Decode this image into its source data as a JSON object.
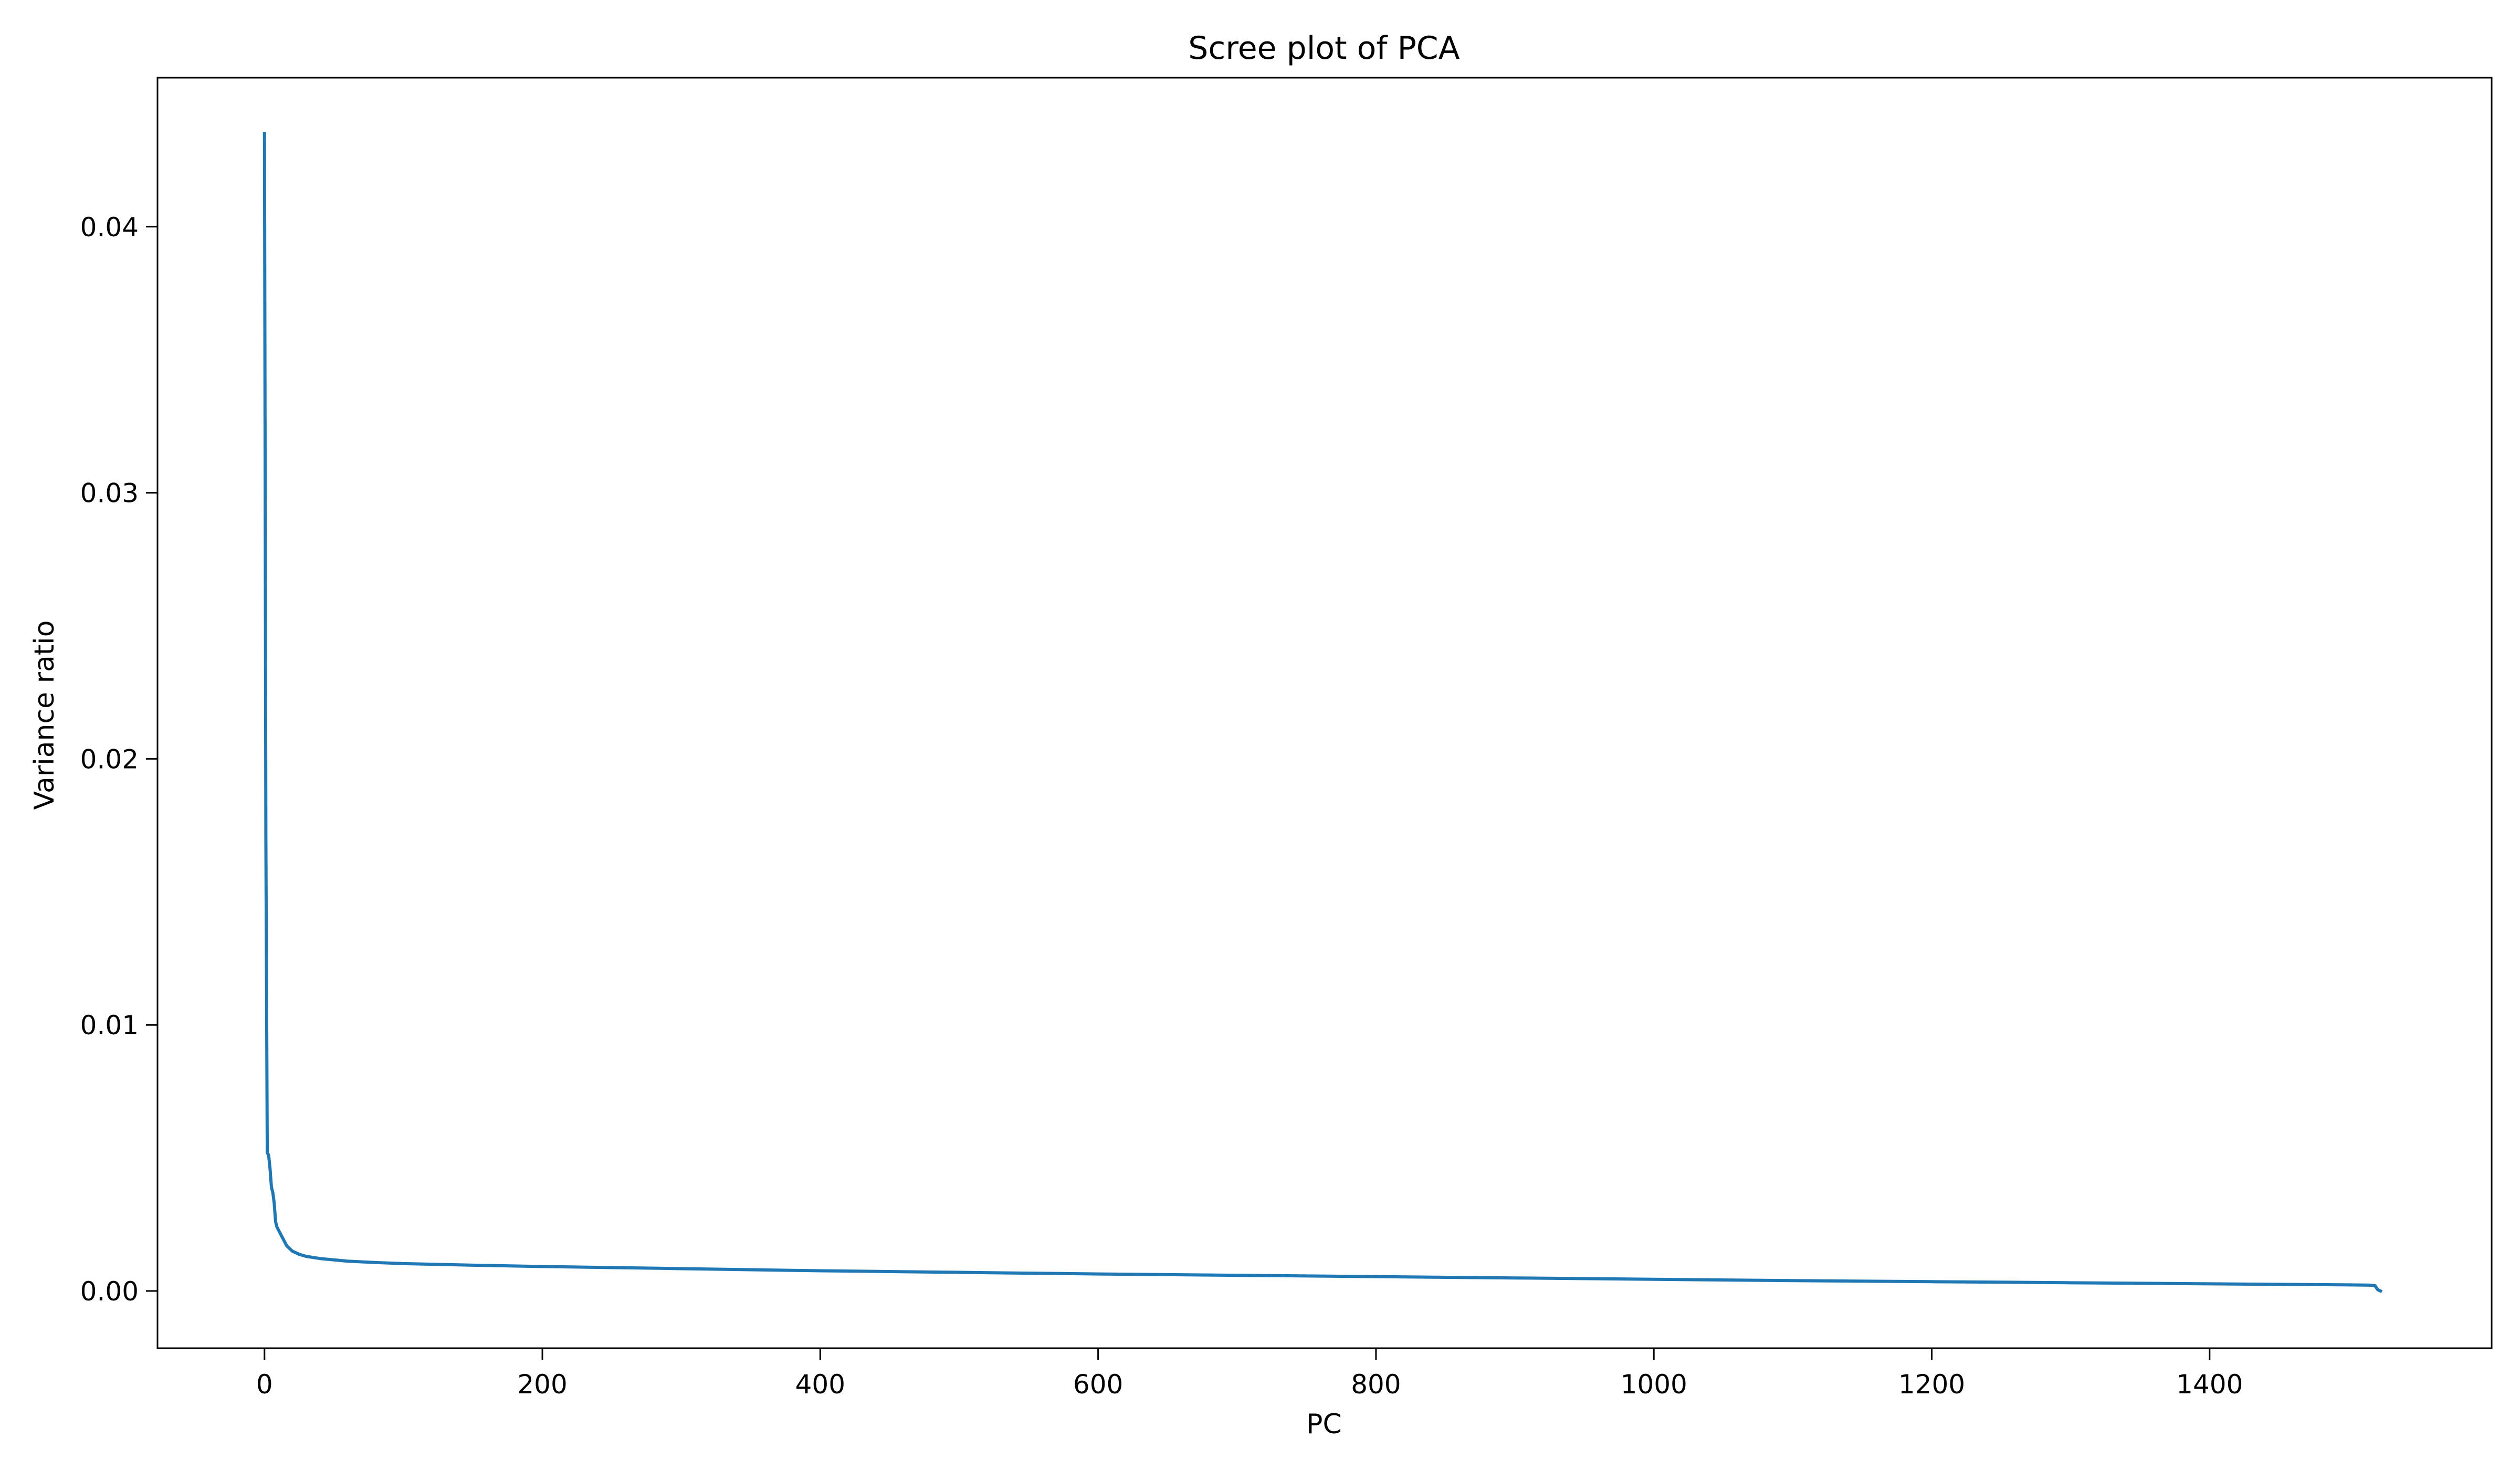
{
  "chart_data": {
    "type": "line",
    "title": "Scree plot of PCA",
    "xlabel": "PC",
    "ylabel": "Variance ratio",
    "xlim": [
      -77,
      1603
    ],
    "ylim": [
      -0.00215,
      0.0456
    ],
    "xticks": [
      0,
      200,
      400,
      600,
      800,
      1000,
      1200,
      1400
    ],
    "xtick_labels": [
      "0",
      "200",
      "400",
      "600",
      "800",
      "1000",
      "1200",
      "1400"
    ],
    "yticks": [
      0.0,
      0.01,
      0.02,
      0.03,
      0.04
    ],
    "ytick_labels": [
      "0.00",
      "0.01",
      "0.02",
      "0.03",
      "0.04"
    ],
    "grid": false,
    "legend": "none",
    "line_color": "#1f77b4",
    "series": [
      {
        "x": [
          0,
          1,
          2,
          3,
          4,
          5,
          6,
          7,
          8,
          9,
          10,
          12,
          14,
          16,
          18,
          20,
          25,
          30,
          40,
          50,
          60,
          80,
          100,
          150,
          200,
          300,
          400,
          500,
          600,
          700,
          800,
          900,
          1000,
          1100,
          1200,
          1300,
          1400,
          1500,
          1515,
          1519,
          1521,
          1523
        ],
        "y": [
          0.0435,
          0.017,
          0.0052,
          0.0051,
          0.0046,
          0.0039,
          0.0037,
          0.0033,
          0.0026,
          0.0024,
          0.0023,
          0.0021,
          0.0019,
          0.0017,
          0.0016,
          0.0015,
          0.00138,
          0.0013,
          0.00122,
          0.00117,
          0.00112,
          0.00107,
          0.00103,
          0.00097,
          0.00092,
          0.00084,
          0.00076,
          0.0007,
          0.00064,
          0.00059,
          0.00054,
          0.00049,
          0.00044,
          0.00039,
          0.00035,
          0.00031,
          0.00027,
          0.00023,
          0.00022,
          0.0002,
          5e-05,
          0.0
        ]
      }
    ]
  }
}
